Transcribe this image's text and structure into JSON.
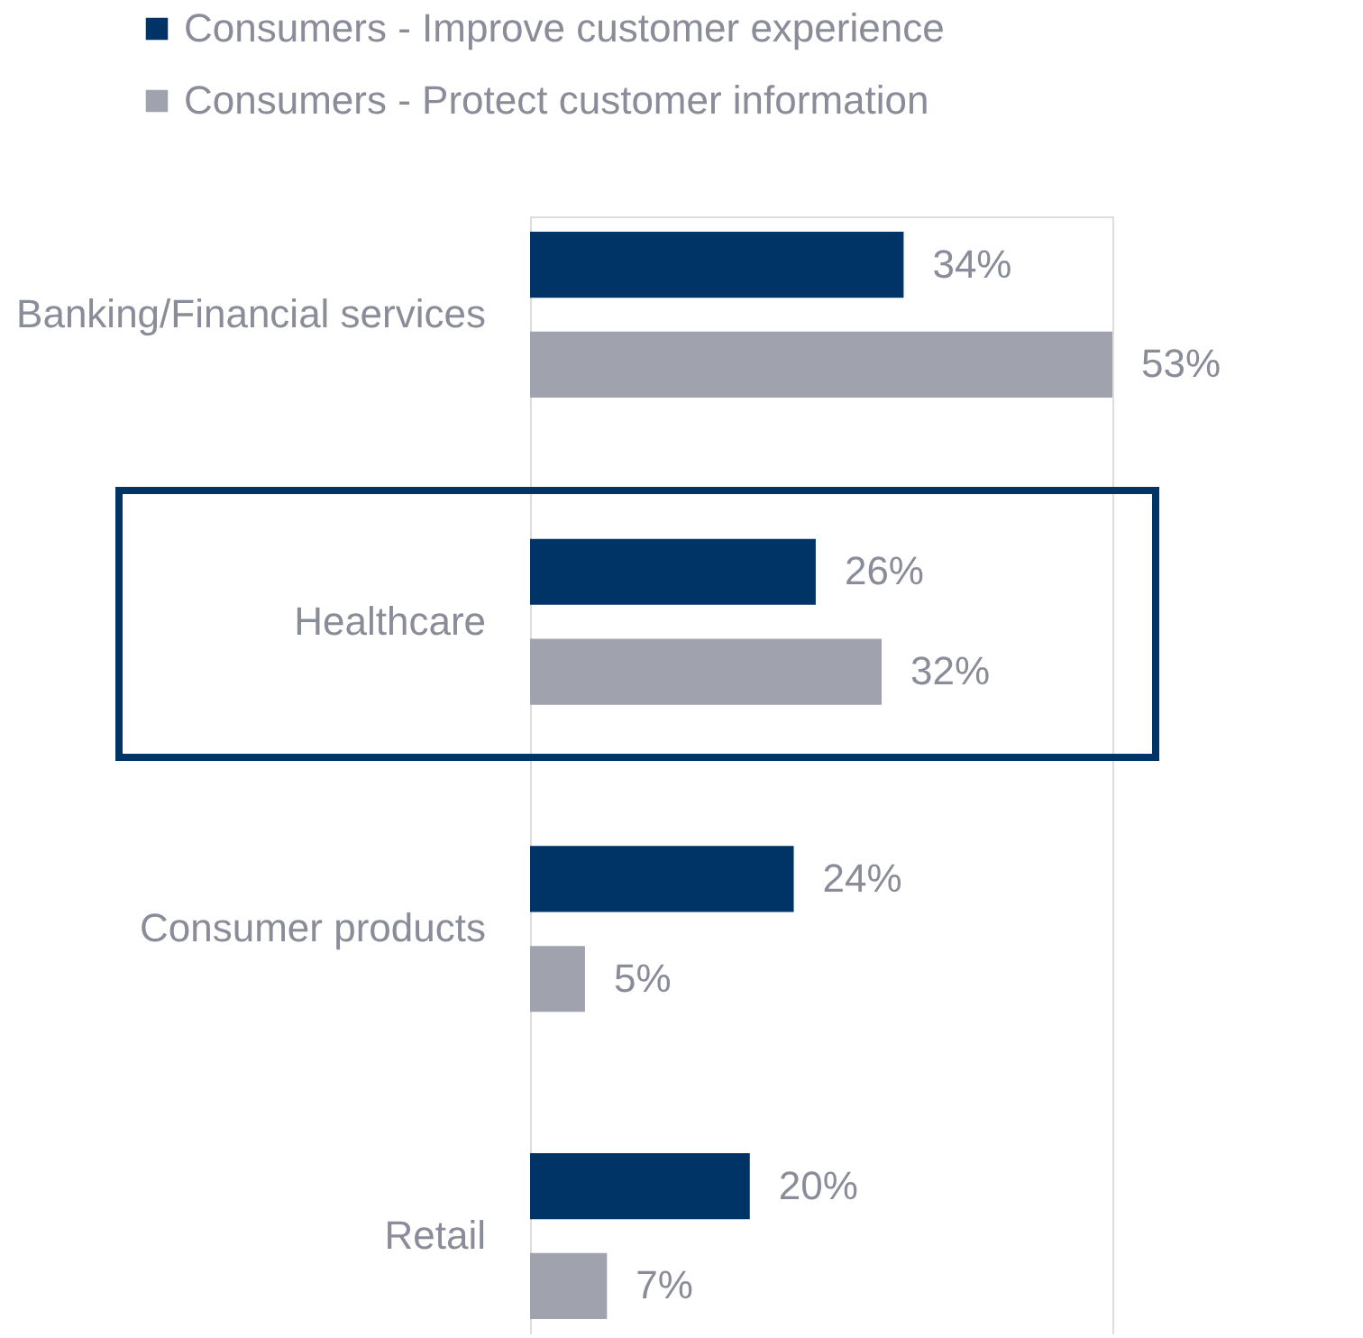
{
  "chart_data": {
    "type": "bar",
    "orientation": "horizontal",
    "categories": [
      "Banking/Financial services",
      "Healthcare",
      "Consumer products",
      "Retail"
    ],
    "series": [
      {
        "name": "Consumers - Improve  customer experience",
        "color": "#003366",
        "values": [
          34,
          26,
          24,
          20
        ],
        "value_labels": [
          "34%",
          "26%",
          "24%",
          "20%"
        ]
      },
      {
        "name": "Consumers - Protect customer information",
        "color": "#a0a3ad",
        "values": [
          53,
          32,
          5,
          7
        ],
        "value_labels": [
          "53%",
          "32%",
          "5%",
          "7%"
        ]
      }
    ],
    "legend": "top",
    "grid": false
  }
}
